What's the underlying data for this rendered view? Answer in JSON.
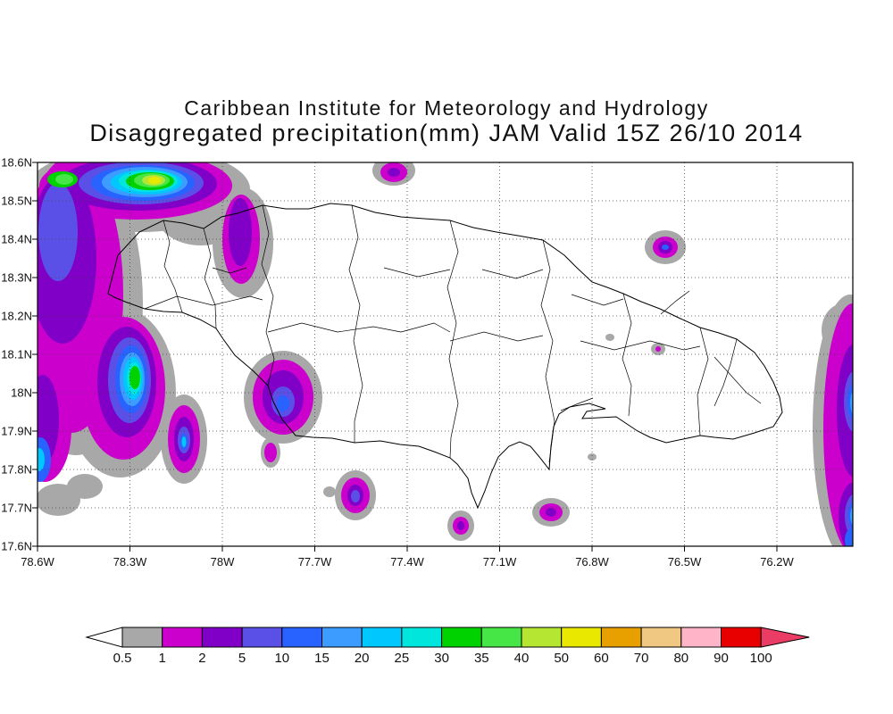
{
  "title": {
    "line1": "Caribbean Institute for Meteorology and Hydrology",
    "line2": "Disaggregated precipitation(mm) JAM Valid 15Z 26/10 2014"
  },
  "axes": {
    "lat_labels": [
      "18.6N",
      "18.5N",
      "18.4N",
      "18.3N",
      "18.2N",
      "18.1N",
      "18N",
      "17.9N",
      "17.8N",
      "17.7N",
      "17.6N"
    ],
    "lon_labels": [
      "78.6W",
      "78.3W",
      "78W",
      "77.7W",
      "77.4W",
      "77.1W",
      "76.8W",
      "76.5W",
      "76.2W"
    ]
  },
  "colorbar": {
    "labels": [
      "0.5",
      "1",
      "2",
      "5",
      "10",
      "15",
      "20",
      "25",
      "30",
      "35",
      "40",
      "50",
      "60",
      "70",
      "80",
      "90",
      "100"
    ],
    "colors": [
      "#a8a8a8",
      "#cc00cc",
      "#8000c8",
      "#5a50e8",
      "#2862ff",
      "#3c9cff",
      "#00c8ff",
      "#00e6dc",
      "#00d200",
      "#46e646",
      "#b4e632",
      "#e8e800",
      "#e8a000",
      "#f0c882",
      "#ffb4c8",
      "#e80000"
    ],
    "left_arrow_color": "#ffffff",
    "right_arrow_color": "#ea3c64",
    "units": "mm"
  },
  "chart_data": {
    "type": "heatmap",
    "subtype": "filled-contour precipitation map (GrADS style)",
    "institute": "Caribbean Institute for Meteorology and Hydrology",
    "title": "Disaggregated precipitation(mm) JAM Valid 15Z 26/10 2014",
    "region": "Jamaica (JAM)",
    "valid": "15Z 26/10 2014",
    "units": "mm",
    "lat_range": [
      "17.6N",
      "18.6N"
    ],
    "lon_range": [
      "78.6W",
      "76.0W"
    ],
    "lat_ticks": [
      "18.6N",
      "18.5N",
      "18.4N",
      "18.3N",
      "18.2N",
      "18.1N",
      "18N",
      "17.9N",
      "17.8N",
      "17.7N",
      "17.6N"
    ],
    "lon_ticks": [
      "78.6W",
      "78.3W",
      "78W",
      "77.7W",
      "77.4W",
      "77.1W",
      "76.8W",
      "76.5W",
      "76.2W"
    ],
    "grid": "dotted graticule every 0.1 deg lat x 0.3 deg lon",
    "legend_position": "bottom colorbar with arrow ends",
    "contour_levels_mm": [
      0.5,
      1,
      2,
      5,
      10,
      15,
      20,
      25,
      30,
      35,
      40,
      50,
      60,
      70,
      80,
      90,
      100
    ],
    "features": [
      {
        "name": "northwest-offshore-convective-area",
        "center": "18.55N 78.25W",
        "peak_mm": 50
      },
      {
        "name": "west-offshore-band",
        "center": "18.05N 78.3W",
        "peak_mm": 30
      },
      {
        "name": "hanover-north-coast-streak",
        "center": "18.40N 77.94W",
        "peak_mm": 5
      },
      {
        "name": "north-offshore-cell",
        "center": "18.57N 77.44W",
        "peak_mm": 2
      },
      {
        "name": "northeast-offshore-cell",
        "center": "18.38N 76.56W",
        "peak_mm": 10
      },
      {
        "name": "black-river-coast-cell",
        "center": "17.99N 77.80W",
        "peak_mm": 10
      },
      {
        "name": "savanna-la-mar-offshore-cell",
        "center": "17.88N 78.12W",
        "peak_mm": 10
      },
      {
        "name": "south-coast-offshore-cell",
        "center": "17.74N 77.57W",
        "peak_mm": 10
      },
      {
        "name": "south-offshore-speck",
        "center": "17.65N 77.23W",
        "peak_mm": 2
      },
      {
        "name": "portland-bight-offshore-cell",
        "center": "17.69N 76.93W",
        "peak_mm": 5
      },
      {
        "name": "east-offshore-band",
        "center": "17.9N 76.0W",
        "peak_mm": 20
      }
    ]
  }
}
